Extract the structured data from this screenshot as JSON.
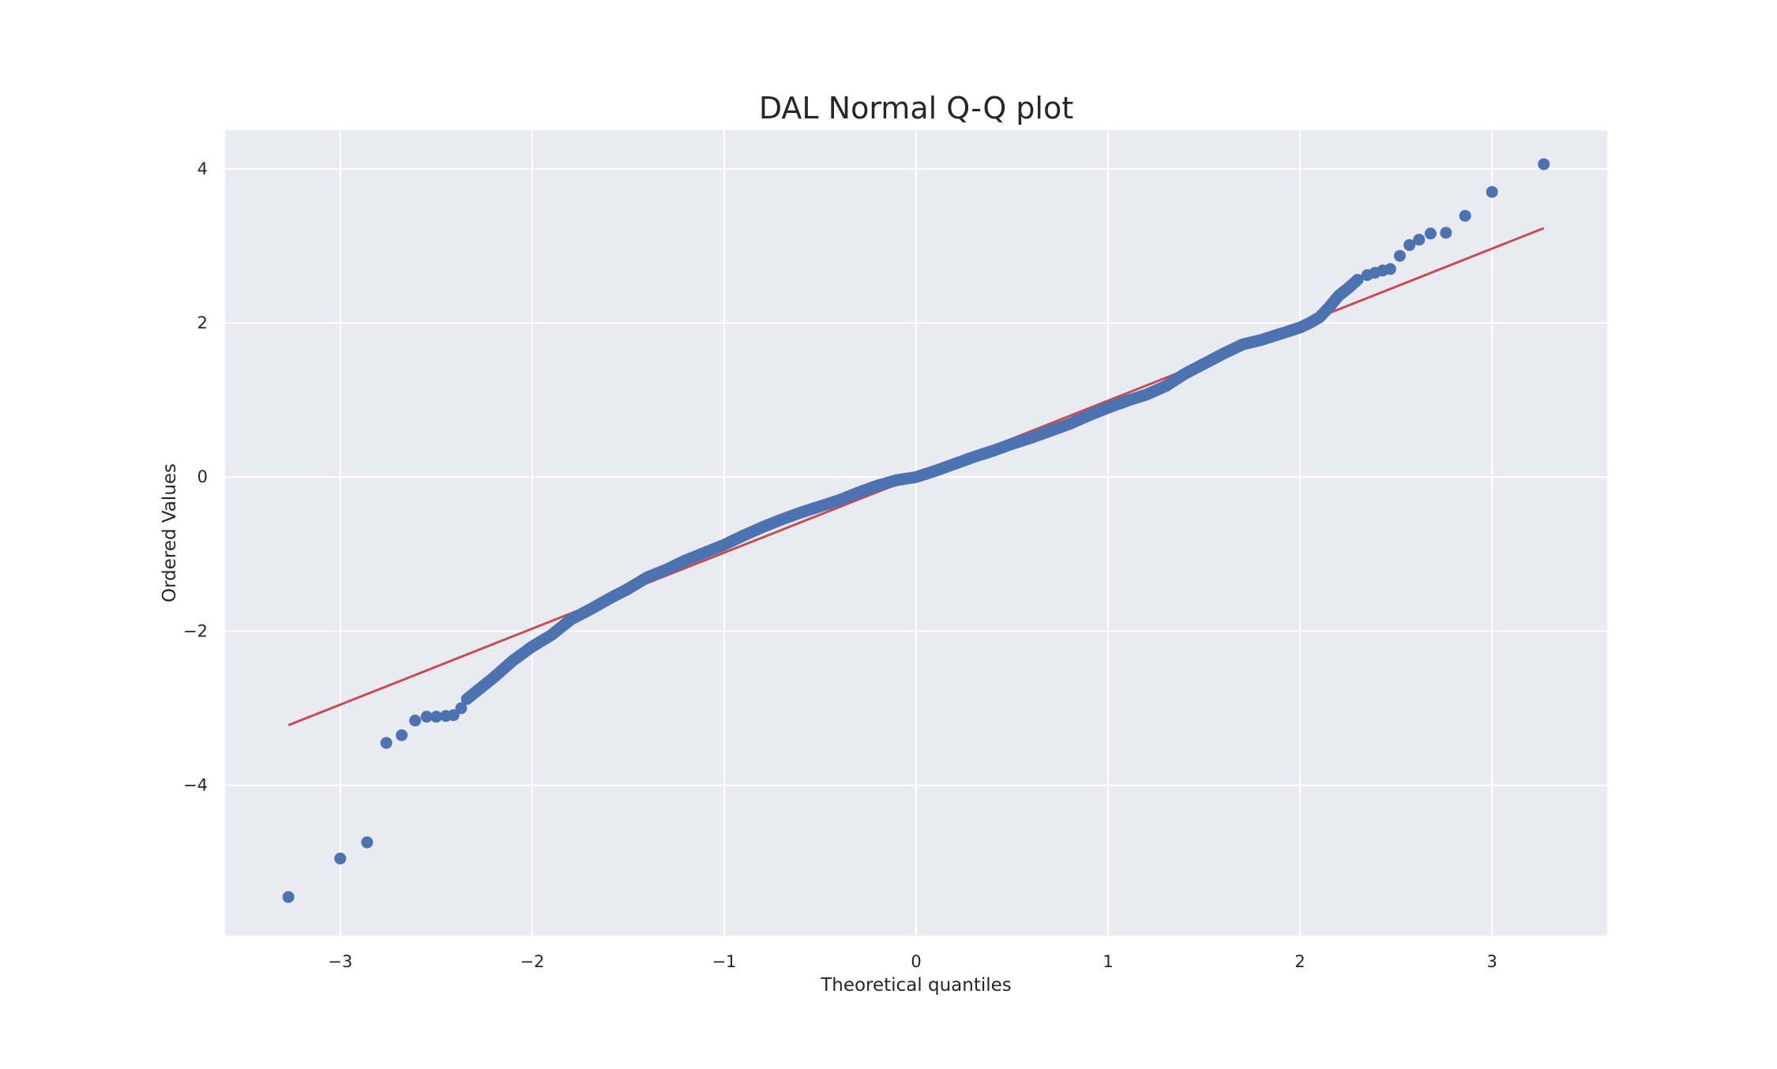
{
  "chart_data": {
    "type": "scatter",
    "title": "DAL Normal Q-Q plot",
    "xlabel": "Theoretical quantiles",
    "ylabel": "Ordered Values",
    "xlim": [
      -3.6,
      3.6
    ],
    "ylim": [
      -5.95,
      4.5
    ],
    "grid": true,
    "x_ticks": [
      -3,
      -2,
      -1,
      0,
      1,
      2,
      3
    ],
    "y_ticks": [
      -4,
      -2,
      0,
      2,
      4
    ],
    "x_tick_labels": [
      "−3",
      "−2",
      "−1",
      "0",
      "1",
      "2",
      "3"
    ],
    "y_tick_labels": [
      "−4",
      "−2",
      "0",
      "2",
      "4"
    ],
    "colors": {
      "points": "#4c72b0",
      "fit_line": "#c44e52",
      "plot_bg": "#eaeaf2",
      "grid": "#ffffff"
    },
    "fit_line": {
      "x": [
        -3.27,
        3.27
      ],
      "y": [
        -3.22,
        3.23
      ]
    },
    "outlier_points": [
      {
        "x": -3.27,
        "y": -5.45
      },
      {
        "x": -3.0,
        "y": -4.95
      },
      {
        "x": -2.86,
        "y": -4.74
      },
      {
        "x": -2.76,
        "y": -3.45
      },
      {
        "x": -2.68,
        "y": -3.35
      },
      {
        "x": -2.61,
        "y": -3.16
      },
      {
        "x": -2.55,
        "y": -3.11
      },
      {
        "x": -2.5,
        "y": -3.11
      },
      {
        "x": -2.45,
        "y": -3.1
      },
      {
        "x": -2.41,
        "y": -3.09
      },
      {
        "x": -2.37,
        "y": -3.0
      },
      {
        "x": 2.35,
        "y": 2.62
      },
      {
        "x": 2.39,
        "y": 2.65
      },
      {
        "x": 2.43,
        "y": 2.68
      },
      {
        "x": 2.47,
        "y": 2.7
      },
      {
        "x": 2.52,
        "y": 2.87
      },
      {
        "x": 2.57,
        "y": 3.01
      },
      {
        "x": 2.62,
        "y": 3.08
      },
      {
        "x": 2.68,
        "y": 3.16
      },
      {
        "x": 2.76,
        "y": 3.17
      },
      {
        "x": 2.86,
        "y": 3.39
      },
      {
        "x": 3.0,
        "y": 3.7
      },
      {
        "x": 3.27,
        "y": 4.06
      }
    ],
    "dense_curve": {
      "x": [
        -2.34,
        -2.2,
        -2.1,
        -2.0,
        -1.9,
        -1.8,
        -1.7,
        -1.6,
        -1.5,
        -1.4,
        -1.3,
        -1.2,
        -1.1,
        -1.0,
        -0.9,
        -0.8,
        -0.7,
        -0.6,
        -0.5,
        -0.4,
        -0.3,
        -0.2,
        -0.1,
        0.0,
        0.1,
        0.2,
        0.3,
        0.4,
        0.5,
        0.6,
        0.7,
        0.8,
        0.9,
        1.0,
        1.1,
        1.2,
        1.3,
        1.4,
        1.5,
        1.6,
        1.7,
        1.8,
        1.9,
        2.0,
        2.05,
        2.1,
        2.15,
        2.2,
        2.25,
        2.3
      ],
      "y": [
        -2.88,
        -2.6,
        -2.38,
        -2.2,
        -2.05,
        -1.85,
        -1.72,
        -1.58,
        -1.45,
        -1.3,
        -1.2,
        -1.08,
        -0.98,
        -0.88,
        -0.76,
        -0.65,
        -0.55,
        -0.46,
        -0.38,
        -0.3,
        -0.2,
        -0.11,
        -0.04,
        0.0,
        0.08,
        0.17,
        0.26,
        0.34,
        0.43,
        0.51,
        0.6,
        0.69,
        0.8,
        0.9,
        0.99,
        1.07,
        1.18,
        1.34,
        1.47,
        1.6,
        1.72,
        1.78,
        1.86,
        1.94,
        2.0,
        2.07,
        2.2,
        2.35,
        2.45,
        2.56
      ]
    }
  }
}
